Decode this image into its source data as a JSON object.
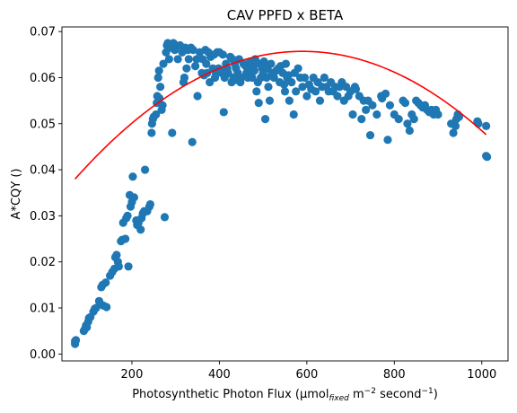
{
  "chart_data": {
    "type": "scatter",
    "title": "CAV PPFD x BETA",
    "xlabel": {
      "prefix": "Photosynthetic Photon Flux (µmol",
      "sub": "fixed",
      "mid1": " m",
      "sup1": "−2",
      "mid2": " second",
      "sup2": "−1",
      "suffix": ")"
    },
    "ylabel": "A*CQY ()",
    "xlim": [
      40,
      1060
    ],
    "ylim": [
      -0.0015,
      0.071
    ],
    "xticks": [
      200,
      400,
      600,
      800,
      1000
    ],
    "yticks": [
      0.0,
      0.01,
      0.02,
      0.03,
      0.04,
      0.05,
      0.06,
      0.07
    ],
    "ytick_labels": [
      "0.00",
      "0.01",
      "0.02",
      "0.03",
      "0.04",
      "0.05",
      "0.06",
      "0.07"
    ],
    "grid": false,
    "series": [
      {
        "type": "scatter",
        "color": "#1f77b4",
        "points": [
          [
            70,
            0.0022
          ],
          [
            70,
            0.0028
          ],
          [
            72,
            0.003
          ],
          [
            90,
            0.005
          ],
          [
            93,
            0.0055
          ],
          [
            95,
            0.0062
          ],
          [
            97,
            0.0058
          ],
          [
            100,
            0.007
          ],
          [
            102,
            0.0078
          ],
          [
            105,
            0.008
          ],
          [
            112,
            0.0092
          ],
          [
            115,
            0.0098
          ],
          [
            118,
            0.01
          ],
          [
            125,
            0.0115
          ],
          [
            127,
            0.011
          ],
          [
            130,
            0.0145
          ],
          [
            133,
            0.015
          ],
          [
            135,
            0.0105
          ],
          [
            140,
            0.0155
          ],
          [
            142,
            0.0102
          ],
          [
            150,
            0.017
          ],
          [
            155,
            0.0178
          ],
          [
            160,
            0.0185
          ],
          [
            162,
            0.021
          ],
          [
            165,
            0.0215
          ],
          [
            168,
            0.02
          ],
          [
            170,
            0.019
          ],
          [
            175,
            0.0245
          ],
          [
            178,
            0.0248
          ],
          [
            180,
            0.0285
          ],
          [
            185,
            0.025
          ],
          [
            187,
            0.0295
          ],
          [
            190,
            0.03
          ],
          [
            192,
            0.019
          ],
          [
            195,
            0.0345
          ],
          [
            197,
            0.032
          ],
          [
            200,
            0.033
          ],
          [
            202,
            0.0385
          ],
          [
            205,
            0.034
          ],
          [
            210,
            0.029
          ],
          [
            212,
            0.028
          ],
          [
            215,
            0.0285
          ],
          [
            220,
            0.027
          ],
          [
            222,
            0.0295
          ],
          [
            225,
            0.0305
          ],
          [
            228,
            0.031
          ],
          [
            230,
            0.04
          ],
          [
            235,
            0.031
          ],
          [
            240,
            0.032
          ],
          [
            242,
            0.0325
          ],
          [
            245,
            0.048
          ],
          [
            246,
            0.05
          ],
          [
            248,
            0.051
          ],
          [
            250,
            0.0515
          ],
          [
            255,
            0.052
          ],
          [
            257,
            0.0545
          ],
          [
            258,
            0.056
          ],
          [
            260,
            0.06
          ],
          [
            262,
            0.0615
          ],
          [
            263,
            0.0555
          ],
          [
            265,
            0.058
          ],
          [
            268,
            0.053
          ],
          [
            270,
            0.054
          ],
          [
            272,
            0.063
          ],
          [
            275,
            0.0297
          ],
          [
            278,
            0.0655
          ],
          [
            280,
            0.067
          ],
          [
            282,
            0.0675
          ],
          [
            285,
            0.064
          ],
          [
            290,
            0.0665
          ],
          [
            292,
            0.048
          ],
          [
            295,
            0.0675
          ],
          [
            298,
            0.066
          ],
          [
            300,
            0.067
          ],
          [
            305,
            0.064
          ],
          [
            310,
            0.067
          ],
          [
            315,
            0.0655
          ],
          [
            318,
            0.059
          ],
          [
            320,
            0.06
          ],
          [
            322,
            0.0665
          ],
          [
            325,
            0.062
          ],
          [
            328,
            0.066
          ],
          [
            330,
            0.064
          ],
          [
            335,
            0.0665
          ],
          [
            338,
            0.046
          ],
          [
            340,
            0.066
          ],
          [
            345,
            0.0625
          ],
          [
            348,
            0.064
          ],
          [
            350,
            0.056
          ],
          [
            355,
            0.0655
          ],
          [
            360,
            0.061
          ],
          [
            362,
            0.064
          ],
          [
            365,
            0.0605
          ],
          [
            368,
            0.066
          ],
          [
            370,
            0.063
          ],
          [
            372,
            0.061
          ],
          [
            375,
            0.0655
          ],
          [
            378,
            0.059
          ],
          [
            380,
            0.0645
          ],
          [
            385,
            0.062
          ],
          [
            388,
            0.065
          ],
          [
            390,
            0.06
          ],
          [
            392,
            0.061
          ],
          [
            395,
            0.0655
          ],
          [
            398,
            0.062
          ],
          [
            400,
            0.0655
          ],
          [
            402,
            0.0615
          ],
          [
            405,
            0.061
          ],
          [
            408,
            0.065
          ],
          [
            410,
            0.0525
          ],
          [
            412,
            0.06
          ],
          [
            415,
            0.063
          ],
          [
            418,
            0.062
          ],
          [
            420,
            0.061
          ],
          [
            425,
            0.0645
          ],
          [
            428,
            0.059
          ],
          [
            430,
            0.064
          ],
          [
            432,
            0.06
          ],
          [
            435,
            0.063
          ],
          [
            438,
            0.062
          ],
          [
            440,
            0.0595
          ],
          [
            442,
            0.061
          ],
          [
            445,
            0.064
          ],
          [
            448,
            0.059
          ],
          [
            450,
            0.06
          ],
          [
            455,
            0.063
          ],
          [
            460,
            0.0625
          ],
          [
            462,
            0.061
          ],
          [
            465,
            0.06
          ],
          [
            468,
            0.062
          ],
          [
            470,
            0.0635
          ],
          [
            472,
            0.061
          ],
          [
            475,
            0.06
          ],
          [
            478,
            0.0625
          ],
          [
            480,
            0.0615
          ],
          [
            482,
            0.064
          ],
          [
            485,
            0.057
          ],
          [
            488,
            0.059
          ],
          [
            490,
            0.0545
          ],
          [
            492,
            0.063
          ],
          [
            495,
            0.06
          ],
          [
            498,
            0.062
          ],
          [
            500,
            0.061
          ],
          [
            502,
            0.0635
          ],
          [
            505,
            0.051
          ],
          [
            508,
            0.06
          ],
          [
            510,
            0.062
          ],
          [
            512,
            0.058
          ],
          [
            515,
            0.055
          ],
          [
            518,
            0.063
          ],
          [
            520,
            0.061
          ],
          [
            525,
            0.06
          ],
          [
            530,
            0.0615
          ],
          [
            535,
            0.062
          ],
          [
            538,
            0.059
          ],
          [
            540,
            0.0625
          ],
          [
            545,
            0.061
          ],
          [
            548,
            0.0585
          ],
          [
            550,
            0.057
          ],
          [
            552,
            0.063
          ],
          [
            555,
            0.06
          ],
          [
            558,
            0.0605
          ],
          [
            560,
            0.055
          ],
          [
            565,
            0.059
          ],
          [
            570,
            0.052
          ],
          [
            572,
            0.061
          ],
          [
            575,
            0.057
          ],
          [
            580,
            0.062
          ],
          [
            585,
            0.06
          ],
          [
            590,
            0.058
          ],
          [
            595,
            0.06
          ],
          [
            600,
            0.056
          ],
          [
            605,
            0.0585
          ],
          [
            610,
            0.0575
          ],
          [
            615,
            0.06
          ],
          [
            620,
            0.057
          ],
          [
            625,
            0.059
          ],
          [
            630,
            0.055
          ],
          [
            635,
            0.058
          ],
          [
            640,
            0.06
          ],
          [
            645,
            0.058
          ],
          [
            650,
            0.057
          ],
          [
            655,
            0.059
          ],
          [
            660,
            0.057
          ],
          [
            665,
            0.058
          ],
          [
            670,
            0.056
          ],
          [
            675,
            0.058
          ],
          [
            680,
            0.059
          ],
          [
            685,
            0.055
          ],
          [
            690,
            0.058
          ],
          [
            695,
            0.056
          ],
          [
            700,
            0.057
          ],
          [
            705,
            0.052
          ],
          [
            710,
            0.058
          ],
          [
            712,
            0.0575
          ],
          [
            720,
            0.056
          ],
          [
            725,
            0.051
          ],
          [
            730,
            0.055
          ],
          [
            735,
            0.053
          ],
          [
            740,
            0.055
          ],
          [
            745,
            0.0475
          ],
          [
            750,
            0.054
          ],
          [
            760,
            0.052
          ],
          [
            770,
            0.056
          ],
          [
            772,
            0.0555
          ],
          [
            780,
            0.0565
          ],
          [
            785,
            0.0465
          ],
          [
            790,
            0.054
          ],
          [
            800,
            0.052
          ],
          [
            810,
            0.051
          ],
          [
            820,
            0.055
          ],
          [
            825,
            0.0545
          ],
          [
            830,
            0.05
          ],
          [
            835,
            0.0485
          ],
          [
            840,
            0.052
          ],
          [
            845,
            0.051
          ],
          [
            850,
            0.055
          ],
          [
            855,
            0.0545
          ],
          [
            860,
            0.054
          ],
          [
            865,
            0.0535
          ],
          [
            870,
            0.054
          ],
          [
            875,
            0.053
          ],
          [
            880,
            0.0525
          ],
          [
            885,
            0.053
          ],
          [
            890,
            0.052
          ],
          [
            895,
            0.053
          ],
          [
            900,
            0.052
          ],
          [
            930,
            0.05
          ],
          [
            935,
            0.048
          ],
          [
            940,
            0.0495
          ],
          [
            942,
            0.051
          ],
          [
            945,
            0.052
          ],
          [
            948,
            0.0515
          ],
          [
            990,
            0.0505
          ],
          [
            992,
            0.05
          ],
          [
            1010,
            0.0495
          ],
          [
            1010,
            0.043
          ],
          [
            1012,
            0.0428
          ]
        ]
      },
      {
        "type": "line",
        "color": "#ff0000",
        "fit": "quadratic",
        "vertex": [
          590,
          0.0657
        ],
        "coefficient": -1.025e-07,
        "xrange": [
          70,
          1010
        ]
      }
    ]
  }
}
